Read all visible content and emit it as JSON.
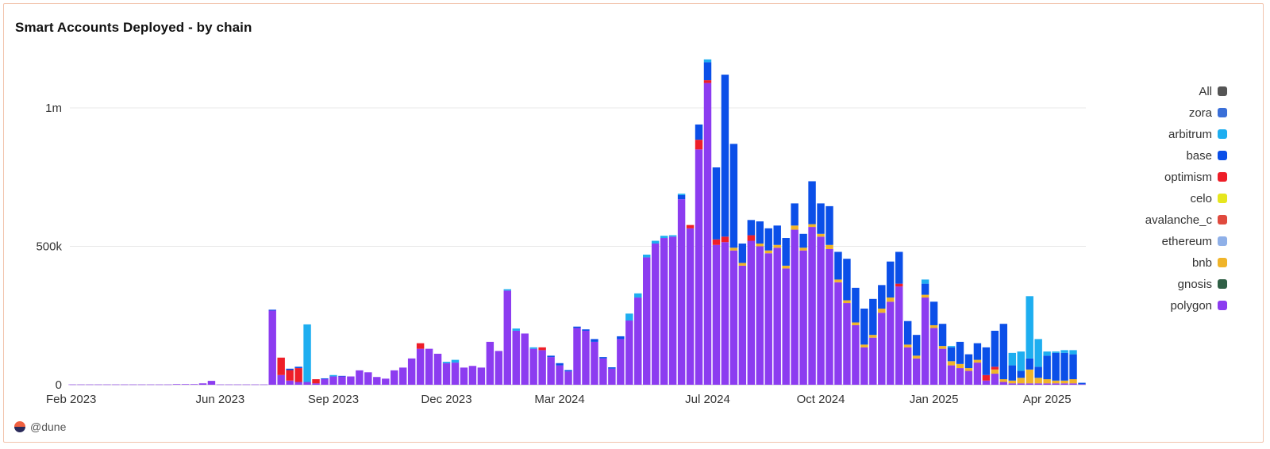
{
  "footer": {
    "brand": "@dune",
    "logo_icon": "dune-logo-icon"
  },
  "chart_data": {
    "type": "bar",
    "stacked": true,
    "title": "Smart Accounts Deployed - by chain",
    "xlabel": "",
    "ylabel": "",
    "ylim": [
      0,
      1200000
    ],
    "yticks": [
      {
        "value": 0,
        "label": "0"
      },
      {
        "value": 500000,
        "label": "500k"
      },
      {
        "value": 1000000,
        "label": "1m"
      }
    ],
    "xticks": [
      {
        "index": 0,
        "label": "Feb 2023"
      },
      {
        "index": 17,
        "label": "Jun 2023"
      },
      {
        "index": 30,
        "label": "Sep 2023"
      },
      {
        "index": 43,
        "label": "Dec 2023"
      },
      {
        "index": 56,
        "label": "Mar 2024"
      },
      {
        "index": 73,
        "label": "Jul 2024"
      },
      {
        "index": 86,
        "label": "Oct 2024"
      },
      {
        "index": 99,
        "label": "Jan 2025"
      },
      {
        "index": 112,
        "label": "Apr 2025"
      }
    ],
    "legend_position": "right",
    "legend": [
      {
        "name": "All",
        "color": "#555555"
      },
      {
        "name": "zora",
        "color": "#3a6fd8"
      },
      {
        "name": "arbitrum",
        "color": "#1eaef0"
      },
      {
        "name": "base",
        "color": "#0b4fe8"
      },
      {
        "name": "optimism",
        "color": "#ee1e28"
      },
      {
        "name": "celo",
        "color": "#e6e61e"
      },
      {
        "name": "avalanche_c",
        "color": "#e04a3e"
      },
      {
        "name": "ethereum",
        "color": "#8fb0e8"
      },
      {
        "name": "bnb",
        "color": "#f0b429"
      },
      {
        "name": "gnosis",
        "color": "#2f5f45"
      },
      {
        "name": "polygon",
        "color": "#8c3cf0"
      }
    ],
    "series_colors": {
      "polygon": "#8c3cf0",
      "bnb": "#f0b429",
      "celo": "#e6e61e",
      "optimism": "#ee1e28",
      "base": "#0b4fe8",
      "arbitrum": "#1eaef0",
      "zora": "#3a6fd8"
    },
    "bars": [
      {
        "x": "2023-02-06",
        "polygon": 1000
      },
      {
        "x": "2023-02-13",
        "polygon": 1000
      },
      {
        "x": "2023-02-20",
        "polygon": 1000
      },
      {
        "x": "2023-02-27",
        "polygon": 1000
      },
      {
        "x": "2023-03-06",
        "polygon": 1000
      },
      {
        "x": "2023-03-13",
        "polygon": 1000
      },
      {
        "x": "2023-03-20",
        "polygon": 1000
      },
      {
        "x": "2023-03-27",
        "polygon": 1000
      },
      {
        "x": "2023-04-03",
        "polygon": 1000
      },
      {
        "x": "2023-04-10",
        "polygon": 1000
      },
      {
        "x": "2023-04-17",
        "polygon": 1000
      },
      {
        "x": "2023-04-24",
        "polygon": 1000
      },
      {
        "x": "2023-05-01",
        "polygon": 2000
      },
      {
        "x": "2023-05-08",
        "polygon": 2000
      },
      {
        "x": "2023-05-15",
        "polygon": 2000
      },
      {
        "x": "2023-05-22",
        "polygon": 5000
      },
      {
        "x": "2023-05-29",
        "polygon": 14000
      },
      {
        "x": "2023-06-05",
        "polygon": 1000
      },
      {
        "x": "2023-06-12",
        "polygon": 1000
      },
      {
        "x": "2023-06-19",
        "polygon": 1000
      },
      {
        "x": "2023-06-26",
        "polygon": 1000
      },
      {
        "x": "2023-07-03",
        "polygon": 1000
      },
      {
        "x": "2023-07-10",
        "polygon": 1000
      },
      {
        "x": "2023-07-17",
        "polygon": 268000,
        "base": 3000
      },
      {
        "x": "2023-07-24",
        "polygon": 35000,
        "optimism": 63000
      },
      {
        "x": "2023-07-31",
        "polygon": 15000,
        "optimism": 38000,
        "base": 5000
      },
      {
        "x": "2023-08-07",
        "polygon": 10000,
        "optimism": 50000,
        "base": 5000
      },
      {
        "x": "2023-08-14",
        "polygon": 10000,
        "arbitrum": 208000
      },
      {
        "x": "2023-08-21",
        "polygon": 5000,
        "optimism": 15000
      },
      {
        "x": "2023-08-28",
        "polygon": 20000,
        "base": 3000
      },
      {
        "x": "2023-09-04",
        "polygon": 30000,
        "arbitrum": 5000
      },
      {
        "x": "2023-09-11",
        "polygon": 30000,
        "base": 2000
      },
      {
        "x": "2023-09-18",
        "polygon": 30000
      },
      {
        "x": "2023-09-25",
        "polygon": 52000
      },
      {
        "x": "2023-10-02",
        "polygon": 45000
      },
      {
        "x": "2023-10-09",
        "polygon": 28000
      },
      {
        "x": "2023-10-16",
        "polygon": 22000
      },
      {
        "x": "2023-10-23",
        "polygon": 52000
      },
      {
        "x": "2023-10-30",
        "polygon": 62000
      },
      {
        "x": "2023-11-06",
        "polygon": 95000
      },
      {
        "x": "2023-11-13",
        "polygon": 130000,
        "optimism": 20000
      },
      {
        "x": "2023-11-20",
        "polygon": 130000
      },
      {
        "x": "2023-11-27",
        "polygon": 112000
      },
      {
        "x": "2023-12-04",
        "polygon": 78000,
        "arbitrum": 5000
      },
      {
        "x": "2023-12-11",
        "polygon": 80000,
        "arbitrum": 10000
      },
      {
        "x": "2023-12-18",
        "polygon": 62000
      },
      {
        "x": "2023-12-25",
        "polygon": 68000
      },
      {
        "x": "2024-01-01",
        "polygon": 62000
      },
      {
        "x": "2024-01-08",
        "polygon": 155000
      },
      {
        "x": "2024-01-15",
        "polygon": 122000
      },
      {
        "x": "2024-01-22",
        "polygon": 340000,
        "arbitrum": 5000
      },
      {
        "x": "2024-01-29",
        "polygon": 195000,
        "arbitrum": 8000
      },
      {
        "x": "2024-02-05",
        "polygon": 185000
      },
      {
        "x": "2024-02-12",
        "polygon": 130000,
        "arbitrum": 5000
      },
      {
        "x": "2024-02-19",
        "polygon": 125000,
        "optimism": 10000
      },
      {
        "x": "2024-02-26",
        "polygon": 100000,
        "base": 5000
      },
      {
        "x": "2024-03-04",
        "polygon": 70000,
        "base": 8000
      },
      {
        "x": "2024-03-11",
        "polygon": 48000,
        "base": 5000
      },
      {
        "x": "2024-03-18",
        "polygon": 205000,
        "base": 5000
      },
      {
        "x": "2024-03-25",
        "polygon": 195000,
        "base": 5000
      },
      {
        "x": "2024-04-01",
        "polygon": 155000,
        "base": 10000
      },
      {
        "x": "2024-04-08",
        "polygon": 95000,
        "base": 5000
      },
      {
        "x": "2024-04-15",
        "polygon": 58000,
        "base": 5000
      },
      {
        "x": "2024-04-22",
        "polygon": 165000,
        "base": 10000
      },
      {
        "x": "2024-04-29",
        "polygon": 232000,
        "arbitrum": 25000
      },
      {
        "x": "2024-05-06",
        "polygon": 315000,
        "arbitrum": 15000
      },
      {
        "x": "2024-05-13",
        "polygon": 460000,
        "arbitrum": 10000
      },
      {
        "x": "2024-05-20",
        "polygon": 510000,
        "arbitrum": 10000
      },
      {
        "x": "2024-05-27",
        "polygon": 530000,
        "arbitrum": 8000
      },
      {
        "x": "2024-06-03",
        "polygon": 535000,
        "arbitrum": 5000
      },
      {
        "x": "2024-06-10",
        "polygon": 670000,
        "base": 15000,
        "arbitrum": 5000
      },
      {
        "x": "2024-06-17",
        "polygon": 565000,
        "optimism": 12000
      },
      {
        "x": "2024-06-24",
        "polygon": 850000,
        "optimism": 35000,
        "base": 55000
      },
      {
        "x": "2024-07-01",
        "polygon": 1090000,
        "optimism": 10000,
        "base": 65000,
        "arbitrum": 10000
      },
      {
        "x": "2024-07-08",
        "polygon": 505000,
        "optimism": 20000,
        "base": 260000
      },
      {
        "x": "2024-07-15",
        "polygon": 515000,
        "optimism": 20000,
        "base": 585000
      },
      {
        "x": "2024-07-22",
        "polygon": 485000,
        "bnb": 10000,
        "base": 375000
      },
      {
        "x": "2024-07-29",
        "polygon": 430000,
        "bnb": 10000,
        "base": 70000
      },
      {
        "x": "2024-08-05",
        "polygon": 520000,
        "optimism": 20000,
        "base": 55000
      },
      {
        "x": "2024-08-12",
        "polygon": 500000,
        "bnb": 10000,
        "base": 80000
      },
      {
        "x": "2024-08-19",
        "polygon": 475000,
        "bnb": 10000,
        "base": 80000
      },
      {
        "x": "2024-08-26",
        "polygon": 495000,
        "bnb": 10000,
        "base": 70000
      },
      {
        "x": "2024-09-02",
        "polygon": 420000,
        "bnb": 10000,
        "base": 100000
      },
      {
        "x": "2024-09-09",
        "polygon": 560000,
        "bnb": 15000,
        "base": 80000
      },
      {
        "x": "2024-09-16",
        "polygon": 485000,
        "bnb": 10000,
        "base": 50000
      },
      {
        "x": "2024-09-23",
        "polygon": 570000,
        "bnb": 10000,
        "base": 155000
      },
      {
        "x": "2024-09-30",
        "polygon": 535000,
        "bnb": 10000,
        "base": 110000
      },
      {
        "x": "2024-10-07",
        "polygon": 490000,
        "bnb": 15000,
        "base": 140000
      },
      {
        "x": "2024-10-14",
        "polygon": 370000,
        "bnb": 10000,
        "base": 100000
      },
      {
        "x": "2024-10-21",
        "polygon": 295000,
        "bnb": 10000,
        "base": 150000
      },
      {
        "x": "2024-10-28",
        "polygon": 215000,
        "bnb": 10000,
        "base": 125000
      },
      {
        "x": "2024-11-04",
        "polygon": 135000,
        "bnb": 10000,
        "base": 130000
      },
      {
        "x": "2024-11-11",
        "polygon": 170000,
        "bnb": 10000,
        "base": 130000
      },
      {
        "x": "2024-11-18",
        "polygon": 260000,
        "bnb": 15000,
        "base": 85000
      },
      {
        "x": "2024-11-25",
        "polygon": 300000,
        "bnb": 15000,
        "base": 130000
      },
      {
        "x": "2024-12-02",
        "polygon": 355000,
        "optimism": 10000,
        "base": 115000
      },
      {
        "x": "2024-12-09",
        "polygon": 135000,
        "bnb": 10000,
        "base": 85000
      },
      {
        "x": "2024-12-16",
        "polygon": 95000,
        "bnb": 10000,
        "base": 75000
      },
      {
        "x": "2024-12-23",
        "polygon": 315000,
        "bnb": 10000,
        "base": 40000,
        "arbitrum": 15000
      },
      {
        "x": "2024-12-30",
        "polygon": 205000,
        "bnb": 10000,
        "base": 85000
      },
      {
        "x": "2025-01-06",
        "polygon": 130000,
        "bnb": 10000,
        "base": 80000
      },
      {
        "x": "2025-01-13",
        "polygon": 70000,
        "bnb": 15000,
        "base": 50000,
        "arbitrum": 5000
      },
      {
        "x": "2025-01-20",
        "polygon": 60000,
        "bnb": 15000,
        "base": 80000
      },
      {
        "x": "2025-01-27",
        "polygon": 50000,
        "bnb": 10000,
        "base": 50000
      },
      {
        "x": "2025-02-03",
        "polygon": 80000,
        "bnb": 10000,
        "base": 60000
      },
      {
        "x": "2025-02-10",
        "polygon": 15000,
        "optimism": 20000,
        "base": 100000
      },
      {
        "x": "2025-02-17",
        "polygon": 40000,
        "bnb": 15000,
        "optimism": 10000,
        "base": 130000
      },
      {
        "x": "2025-02-24",
        "polygon": 10000,
        "bnb": 10000,
        "base": 200000
      },
      {
        "x": "2025-03-03",
        "polygon": 5000,
        "bnb": 10000,
        "base": 55000,
        "arbitrum": 45000
      },
      {
        "x": "2025-03-10",
        "polygon": 5000,
        "bnb": 20000,
        "base": 25000,
        "arbitrum": 70000
      },
      {
        "x": "2025-03-17",
        "polygon": 5000,
        "bnb": 50000,
        "base": 40000,
        "arbitrum": 225000
      },
      {
        "x": "2025-03-24",
        "polygon": 5000,
        "bnb": 20000,
        "base": 40000,
        "arbitrum": 100000
      },
      {
        "x": "2025-03-31",
        "polygon": 5000,
        "bnb": 15000,
        "base": 85000,
        "arbitrum": 15000
      },
      {
        "x": "2025-04-07",
        "polygon": 5000,
        "bnb": 10000,
        "base": 100000,
        "arbitrum": 5000
      },
      {
        "x": "2025-04-14",
        "polygon": 5000,
        "bnb": 10000,
        "base": 100000,
        "arbitrum": 10000
      },
      {
        "x": "2025-04-21",
        "polygon": 5000,
        "bnb": 15000,
        "base": 90000,
        "arbitrum": 15000
      },
      {
        "x": "2025-04-28",
        "polygon": 2000,
        "base": 5000
      }
    ]
  }
}
